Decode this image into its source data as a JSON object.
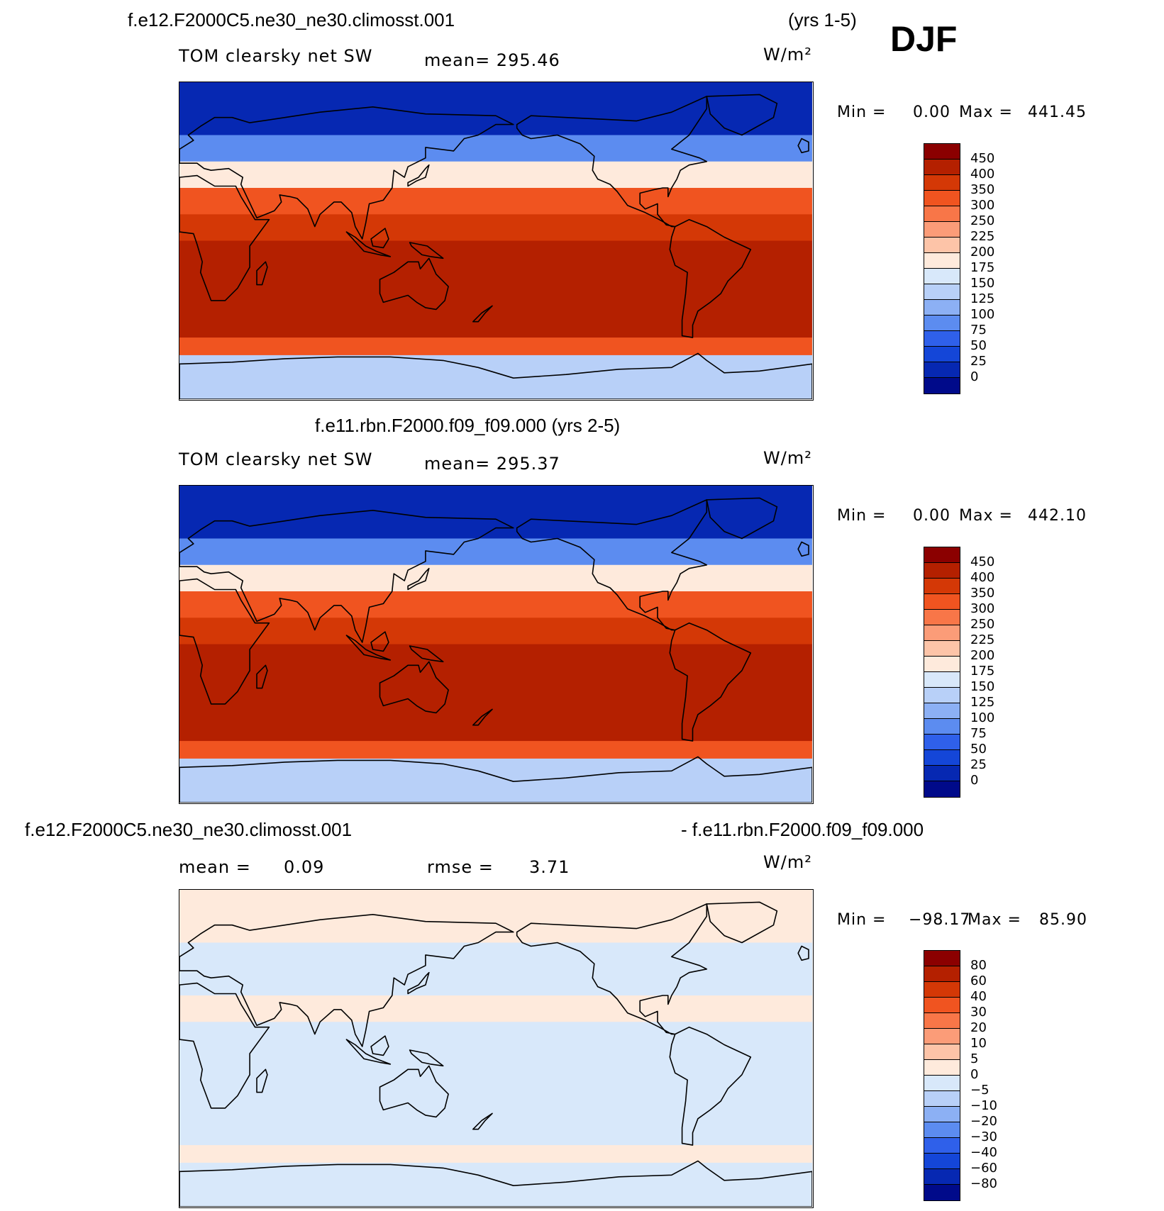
{
  "season": "DJF",
  "panel1": {
    "case": "f.e12.F2000C5.ne30_ne30.climosst.001",
    "years": "(yrs 1-5)",
    "variable": "TOM clearsky net SW",
    "mean": "mean= 295.46",
    "units": "W/m²",
    "min_label": "Min =",
    "min_value": "0.00",
    "max_label": "Max =",
    "max_value": "441.45"
  },
  "panel2": {
    "case": "f.e11.rbn.F2000.f09_f09.000 (yrs 2-5)",
    "variable": "TOM clearsky net SW",
    "mean": "mean= 295.37",
    "units": "W/m²",
    "min_label": "Min =",
    "min_value": "0.00",
    "max_label": "Max =",
    "max_value": "442.10"
  },
  "panel3": {
    "case_left": "f.e12.F2000C5.ne30_ne30.climosst.001",
    "case_right": "- f.e11.rbn.F2000.f09_f09.000",
    "mean_label": "mean =",
    "mean_value": "0.09",
    "rmse_label": "rmse =",
    "rmse_value": "3.71",
    "units": "W/m²",
    "min_label": "Min =",
    "min_value": "−98.17",
    "max_label": "Max =",
    "max_value": "85.90"
  },
  "chart_data": [
    {
      "type": "heatmap",
      "title": "f.e12.F2000C5.ne30_ne30.climosst.001",
      "subtitle": "TOM clearsky net SW",
      "units": "W/m²",
      "mean": 295.46,
      "min": 0.0,
      "max": 441.45,
      "colorbar_levels": [
        "450",
        "400",
        "350",
        "300",
        "250",
        "225",
        "200",
        "175",
        "150",
        "125",
        "100",
        "75",
        "50",
        "25",
        "0"
      ],
      "colors": [
        "#8b0000",
        "#b42000",
        "#d43806",
        "#f05420",
        "#f87648",
        "#fb9c78",
        "#fdc4a8",
        "#feeadc",
        "#d8e8fa",
        "#b8d0f8",
        "#8cb0f4",
        "#5c8cf0",
        "#2f60ea",
        "#1446d8",
        "#0628b2",
        "#000a8a"
      ],
      "zonal_bands": [
        {
          "lat": "60N-90N",
          "value": 10
        },
        {
          "lat": "45N-60N",
          "value": 80
        },
        {
          "lat": "30N-45N",
          "value": 190
        },
        {
          "lat": "15N-30N",
          "value": 320
        },
        {
          "lat": "0-15N",
          "value": 380
        },
        {
          "lat": "0-30S",
          "value": 420
        },
        {
          "lat": "30S-55S",
          "value": 415
        },
        {
          "lat": "55S-65S",
          "value": 330
        },
        {
          "lat": "65S-90S",
          "value": 140
        }
      ]
    },
    {
      "type": "heatmap",
      "title": "f.e11.rbn.F2000.f09_f09.000 (yrs 2-5)",
      "subtitle": "TOM clearsky net SW",
      "units": "W/m²",
      "mean": 295.37,
      "min": 0.0,
      "max": 442.1,
      "colorbar_levels": [
        "450",
        "400",
        "350",
        "300",
        "250",
        "225",
        "200",
        "175",
        "150",
        "125",
        "100",
        "75",
        "50",
        "25",
        "0"
      ],
      "colors": [
        "#8b0000",
        "#b42000",
        "#d43806",
        "#f05420",
        "#f87648",
        "#fb9c78",
        "#fdc4a8",
        "#feeadc",
        "#d8e8fa",
        "#b8d0f8",
        "#8cb0f4",
        "#5c8cf0",
        "#2f60ea",
        "#1446d8",
        "#0628b2",
        "#000a8a"
      ],
      "zonal_bands": [
        {
          "lat": "60N-90N",
          "value": 10
        },
        {
          "lat": "45N-60N",
          "value": 80
        },
        {
          "lat": "30N-45N",
          "value": 190
        },
        {
          "lat": "15N-30N",
          "value": 320
        },
        {
          "lat": "0-15N",
          "value": 380
        },
        {
          "lat": "0-30S",
          "value": 420
        },
        {
          "lat": "30S-55S",
          "value": 415
        },
        {
          "lat": "55S-65S",
          "value": 330
        },
        {
          "lat": "65S-90S",
          "value": 140
        }
      ]
    },
    {
      "type": "heatmap",
      "title": "f.e12.F2000C5.ne30_ne30.climosst.001 - f.e11.rbn.F2000.f09_f09.000",
      "units": "W/m²",
      "mean": 0.09,
      "rmse": 3.71,
      "min": -98.17,
      "max": 85.9,
      "colorbar_levels": [
        "80",
        "60",
        "40",
        "30",
        "20",
        "10",
        "5",
        "0",
        "−5",
        "−10",
        "−20",
        "−30",
        "−40",
        "−60",
        "−80"
      ],
      "colors": [
        "#8b0000",
        "#b42000",
        "#d43806",
        "#f05420",
        "#f87648",
        "#fb9c78",
        "#fdc4a8",
        "#feeadc",
        "#d8e8fa",
        "#b8d0f8",
        "#8cb0f4",
        "#5c8cf0",
        "#2f60ea",
        "#1446d8",
        "#0628b2",
        "#000a8a"
      ],
      "zonal_bands": [
        {
          "lat": "60N-90N",
          "value": 2
        },
        {
          "lat": "45N-60N",
          "value": -2
        },
        {
          "lat": "30N-45N",
          "value": -2
        },
        {
          "lat": "15N-30N",
          "value": 2
        },
        {
          "lat": "0-15N",
          "value": -2
        },
        {
          "lat": "0-30S",
          "value": -2
        },
        {
          "lat": "30S-55S",
          "value": -2
        },
        {
          "lat": "55S-65S",
          "value": 2
        },
        {
          "lat": "65S-90S",
          "value": -2
        }
      ]
    }
  ]
}
